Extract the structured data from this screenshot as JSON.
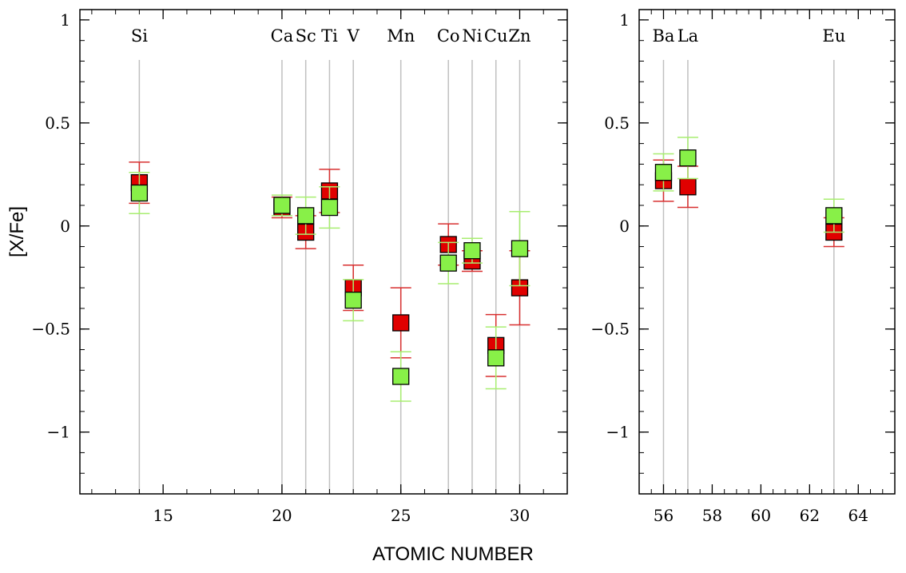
{
  "chart_data": {
    "type": "scatter",
    "ylabel": "[X/Fe]",
    "xlabel": "ATOMIC NUMBER",
    "ylim": [
      -1.3,
      1.05
    ],
    "yticks": [
      1,
      0.5,
      0,
      -0.5,
      -1
    ],
    "ytick_labels": [
      "1",
      "0.5",
      "0",
      "−0.5",
      "−1"
    ],
    "colors": {
      "red": "#e00000",
      "green": "#88f048",
      "red_err": "#d83030",
      "green_err": "#a8ee70",
      "vline": "#c0c0c0"
    },
    "panels": [
      {
        "xlim": [
          11.5,
          32
        ],
        "xticks": [
          15,
          20,
          25,
          30
        ],
        "elements": [
          {
            "label": "Si",
            "z": 14
          },
          {
            "label": "Ca",
            "z": 20
          },
          {
            "label": "Sc",
            "z": 21
          },
          {
            "label": "Ti",
            "z": 22
          },
          {
            "label": "V",
            "z": 23
          },
          {
            "label": "Mn",
            "z": 25
          },
          {
            "label": "Co",
            "z": 27
          },
          {
            "label": "Ni",
            "z": 28
          },
          {
            "label": "Cu",
            "z": 29
          },
          {
            "label": "Zn",
            "z": 30
          }
        ],
        "series": [
          {
            "color": "red",
            "points": [
              {
                "x": 14,
                "y": 0.21,
                "err": 0.1
              },
              {
                "x": 20,
                "y": 0.09,
                "err": 0.05
              },
              {
                "x": 21,
                "y": -0.03,
                "err": 0.08
              },
              {
                "x": 22,
                "y": 0.17,
                "err": 0.105
              },
              {
                "x": 23,
                "y": -0.3,
                "err": 0.11
              },
              {
                "x": 25,
                "y": -0.47,
                "err": 0.17
              },
              {
                "x": 27,
                "y": -0.09,
                "err": 0.1
              },
              {
                "x": 28,
                "y": -0.17,
                "err": 0.05
              },
              {
                "x": 29,
                "y": -0.58,
                "err": 0.15
              },
              {
                "x": 30,
                "y": -0.3,
                "err": 0.18
              }
            ]
          },
          {
            "color": "green",
            "points": [
              {
                "x": 14,
                "y": 0.16,
                "err": 0.1
              },
              {
                "x": 20,
                "y": 0.1,
                "err": 0.05
              },
              {
                "x": 21,
                "y": 0.05,
                "err": 0.09
              },
              {
                "x": 22,
                "y": 0.09,
                "err": 0.1
              },
              {
                "x": 23,
                "y": -0.36,
                "err": 0.1
              },
              {
                "x": 25,
                "y": -0.73,
                "err": 0.12
              },
              {
                "x": 27,
                "y": -0.18,
                "err": 0.1
              },
              {
                "x": 28,
                "y": -0.12,
                "err": 0.06
              },
              {
                "x": 29,
                "y": -0.64,
                "err": 0.15
              },
              {
                "x": 30,
                "y": -0.11,
                "err": 0.18
              }
            ]
          }
        ]
      },
      {
        "xlim": [
          55,
          65.5
        ],
        "xticks": [
          56,
          58,
          60,
          62,
          64
        ],
        "elements": [
          {
            "label": "Ba",
            "z": 56
          },
          {
            "label": "La",
            "z": 57
          },
          {
            "label": "Eu",
            "z": 63
          }
        ],
        "series": [
          {
            "color": "red",
            "points": [
              {
                "x": 56,
                "y": 0.22,
                "err": 0.1
              },
              {
                "x": 57,
                "y": 0.19,
                "err": 0.1
              },
              {
                "x": 63,
                "y": -0.03,
                "err": 0.07
              }
            ]
          },
          {
            "color": "green",
            "points": [
              {
                "x": 56,
                "y": 0.26,
                "err": 0.09
              },
              {
                "x": 57,
                "y": 0.33,
                "err": 0.1
              },
              {
                "x": 63,
                "y": 0.05,
                "err": 0.08
              }
            ]
          }
        ]
      }
    ]
  }
}
